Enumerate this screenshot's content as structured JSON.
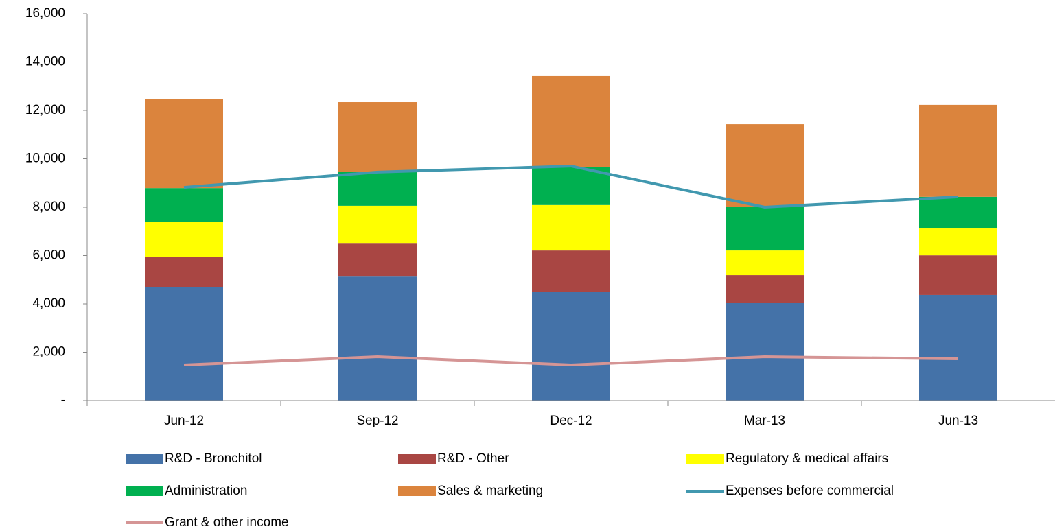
{
  "chart_data": {
    "type": "bar",
    "stacked": true,
    "categories": [
      "Jun-12",
      "Sep-12",
      "Dec-12",
      "Mar-13",
      "Jun-13"
    ],
    "series": [
      {
        "name": "R&D - Bronchitol",
        "color": "#4472a8",
        "values": [
          4700,
          5130,
          4510,
          4030,
          4370
        ]
      },
      {
        "name": "R&D - Other",
        "color": "#a94643",
        "values": [
          1250,
          1390,
          1700,
          1160,
          1640
        ]
      },
      {
        "name": "Regulatory & medical affairs",
        "color": "#ffff00",
        "values": [
          1450,
          1540,
          1880,
          1020,
          1110
        ]
      },
      {
        "name": "Administration",
        "color": "#00b050",
        "values": [
          1390,
          1390,
          1580,
          1790,
          1310
        ]
      },
      {
        "name": "Sales & marketing",
        "color": "#db843d",
        "values": [
          3690,
          2890,
          3750,
          3430,
          3800
        ]
      },
      {
        "name": "Expenses before commercial",
        "color": "#4198af",
        "type": "line",
        "values": [
          8820,
          9450,
          9700,
          8000,
          8430
        ]
      },
      {
        "name": "Grant & other income",
        "color": "#d59595",
        "type": "line",
        "values": [
          1475,
          1815,
          1475,
          1815,
          1730
        ]
      }
    ],
    "ylim": [
      0,
      16000
    ],
    "yticks": [
      {
        "value": 0,
        "label": "-"
      },
      {
        "value": 2000,
        "label": "2,000"
      },
      {
        "value": 4000,
        "label": "4,000"
      },
      {
        "value": 6000,
        "label": "6,000"
      },
      {
        "value": 8000,
        "label": "8,000"
      },
      {
        "value": 10000,
        "label": "10,000"
      },
      {
        "value": 12000,
        "label": "12,000"
      },
      {
        "value": 14000,
        "label": "14,000"
      },
      {
        "value": 16000,
        "label": "16,000"
      }
    ],
    "grid": false
  }
}
